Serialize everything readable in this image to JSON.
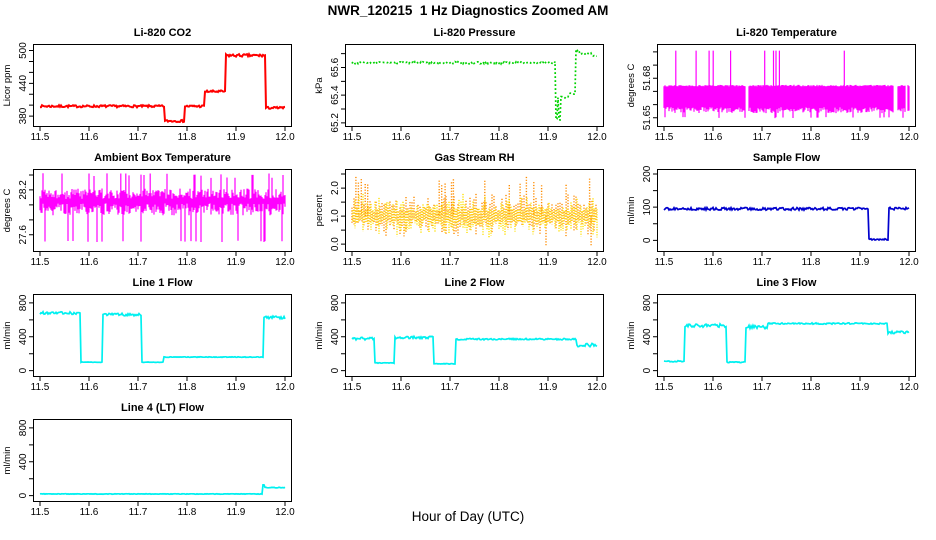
{
  "header": {
    "title": "NWR_120215  1 Hz Diagnostics Zoomed AM"
  },
  "footer": {
    "xlabel": "Hour of Day (UTC)"
  },
  "x_axis": {
    "ticks": [
      11.5,
      11.6,
      11.7,
      11.8,
      11.9,
      12.0
    ],
    "labels": [
      "11.5",
      "11.6",
      "11.7",
      "11.8",
      "11.9",
      "12.0"
    ],
    "xlim": [
      11.5,
      12.0
    ]
  },
  "chart_data": [
    {
      "id": "li820-co2",
      "type": "line",
      "render": "step",
      "line": "solid",
      "lw": 2,
      "title": "Li-820 CO2",
      "ylabel": "Licor ppm",
      "color": "#ff0000",
      "ylim": [
        360,
        512
      ],
      "yticks": [
        380,
        400,
        420,
        440,
        460,
        480,
        500
      ],
      "ytick_labels": [
        {
          "v": 380,
          "t": "380"
        },
        {
          "v": 440,
          "t": "440"
        },
        {
          "v": 500,
          "t": "500"
        }
      ],
      "segments": [
        {
          "x0": 11.5,
          "x1": 11.755,
          "y": 398,
          "n": 2
        },
        {
          "x0": 11.755,
          "x1": 11.795,
          "y": 371,
          "n": 2
        },
        {
          "x0": 11.795,
          "x1": 11.836,
          "y": 398,
          "n": 2
        },
        {
          "x0": 11.836,
          "x1": 11.879,
          "y": 425,
          "n": 2
        },
        {
          "x0": 11.879,
          "x1": 11.96,
          "y": 491,
          "n": 2.5
        },
        {
          "x0": 11.96,
          "x1": 12.0,
          "y": 395,
          "n": 2
        }
      ]
    },
    {
      "id": "li820-pressure",
      "type": "line",
      "render": "step",
      "line": "dotted",
      "lw": 1.7,
      "title": "Li-820 Pressure",
      "ylabel": "kPa",
      "color": "#00d200",
      "ylim": [
        65.17,
        65.77
      ],
      "yticks": [
        65.2,
        65.3,
        65.4,
        65.5,
        65.6,
        65.7
      ],
      "ytick_labels": [
        {
          "v": 65.2,
          "t": "65.2"
        },
        {
          "v": 65.4,
          "t": "65.4"
        },
        {
          "v": 65.6,
          "t": "65.6"
        }
      ],
      "segments": [
        {
          "x0": 11.5,
          "x1": 11.915,
          "y": 65.635,
          "n": 0.008
        },
        {
          "x0": 11.915,
          "x1": 11.9185,
          "y": 65.225,
          "n": 0.005
        },
        {
          "x0": 11.9185,
          "x1": 11.921,
          "y": 65.38,
          "n": 0.004
        },
        {
          "x0": 11.921,
          "x1": 11.9245,
          "y": 65.225,
          "n": 0.005
        },
        {
          "x0": 11.9245,
          "x1": 11.942,
          "y": 65.385,
          "n": 0.006
        },
        {
          "x0": 11.942,
          "x1": 11.957,
          "y": 65.41,
          "n": 0.006
        },
        {
          "x0": 11.957,
          "x1": 11.964,
          "y": 65.725,
          "n": 0.006
        },
        {
          "x0": 11.964,
          "x1": 11.988,
          "y": 65.7,
          "n": 0.005
        },
        {
          "x0": 11.988,
          "x1": 12.0,
          "y": 65.685,
          "n": 0.004
        }
      ]
    },
    {
      "id": "li820-temperature",
      "type": "line",
      "render": "band",
      "line": "solid",
      "lw": 1,
      "title": "Li-820 Temperature",
      "ylabel": "degrees C",
      "color": "#ff00ff",
      "ylim": [
        51.643,
        51.706
      ],
      "yticks": [
        51.65,
        51.66,
        51.67,
        51.68,
        51.69,
        51.7
      ],
      "ytick_labels": [
        {
          "v": 51.65,
          "t": "51.65"
        },
        {
          "v": 51.68,
          "t": "51.68"
        }
      ],
      "band": {
        "top": 51.675,
        "top_jitter": 0.0012,
        "bottom": 51.658,
        "bottom_jitter": 0.0045,
        "dip": 51.6507,
        "dip_prob": 0.07,
        "up": 51.675,
        "up_prob": 0,
        "spike_y": 51.701,
        "spikes": [
          11.524,
          11.5655,
          11.592,
          11.6005,
          11.636,
          11.7055,
          11.7235,
          11.7285,
          11.7355,
          11.868
        ],
        "gaps": [
          [
            11.667,
            11.6715
          ],
          [
            11.968,
            11.977
          ],
          [
            11.9935,
            11.996
          ]
        ]
      }
    },
    {
      "id": "ambient-box-temperature",
      "type": "line",
      "render": "band",
      "line": "solid",
      "lw": 1,
      "title": "Ambient Box Temperature",
      "ylabel": "degrees C",
      "color": "#ff00ff",
      "ylim": [
        27.37,
        28.48
      ],
      "yticks": [
        27.6,
        27.8,
        28.0,
        28.2,
        28.4
      ],
      "ytick_labels": [
        {
          "v": 27.6,
          "t": "27.6"
        },
        {
          "v": 28.2,
          "t": "28.2"
        }
      ],
      "band": {
        "top": 28.22,
        "top_jitter": 0.14,
        "bottom": 28.02,
        "bottom_jitter": 0.16,
        "dip": 27.52,
        "dip_prob": 0.06,
        "up": 28.36,
        "up_prob": 0.07,
        "spike_y": 28.42,
        "spikes": [
          11.545,
          11.665,
          11.675,
          11.725
        ],
        "gaps": []
      }
    },
    {
      "id": "gas-stream-rh",
      "type": "scatter",
      "render": "scatter",
      "line": "dotted",
      "lw": 1,
      "title": "Gas Stream RH",
      "ylabel": "percent",
      "color": "#ff8c00",
      "color2": "#ffe000",
      "ylim": [
        -0.28,
        2.68
      ],
      "yticks": [
        0.0,
        0.5,
        1.0,
        1.5,
        2.0,
        2.5
      ],
      "ytick_labels": [
        {
          "v": 0.0,
          "t": "0.0"
        },
        {
          "v": 1.0,
          "t": "1.0"
        },
        {
          "v": 2.0,
          "t": "2.0"
        }
      ],
      "scatter": {
        "center": 1.0,
        "up_min": 0.12,
        "up_var": 0.55,
        "down_min": 0.12,
        "down_var": 0.5,
        "spike_y": 2.4,
        "spikes": [
          11.508,
          11.513,
          11.519,
          11.527,
          11.532,
          11.678,
          11.683,
          11.69,
          11.703,
          11.707,
          11.771,
          11.821,
          11.843,
          11.856,
          11.871,
          11.887,
          11.937,
          11.985
        ],
        "dip_y": -0.05,
        "dips": [
          11.896,
          11.988
        ]
      }
    },
    {
      "id": "sample-flow",
      "type": "line",
      "render": "step",
      "line": "solid",
      "lw": 1.7,
      "title": "Sample Flow",
      "ylabel": "ml/min",
      "color": "#0000cd",
      "ylim": [
        -35,
        215
      ],
      "yticks": [
        0,
        50,
        100,
        150,
        200
      ],
      "ytick_labels": [
        {
          "v": 0,
          "t": "0"
        },
        {
          "v": 100,
          "t": "100"
        },
        {
          "v": 200,
          "t": "200"
        }
      ],
      "segments": [
        {
          "x0": 11.5,
          "x1": 11.918,
          "y": 95,
          "n": 4
        },
        {
          "x0": 11.918,
          "x1": 11.958,
          "y": 3,
          "n": 2
        },
        {
          "x0": 11.958,
          "x1": 12.0,
          "y": 96,
          "n": 4
        }
      ]
    },
    {
      "id": "line-1-flow",
      "type": "line",
      "render": "step",
      "line": "solid",
      "lw": 1.7,
      "title": "Line 1 Flow",
      "ylabel": "ml/min",
      "color": "#00f0f0",
      "ylim": [
        -75,
        905
      ],
      "yticks": [
        0,
        200,
        400,
        600,
        800
      ],
      "ytick_labels": [
        {
          "v": 0,
          "t": "0"
        },
        {
          "v": 400,
          "t": "400"
        },
        {
          "v": 800,
          "t": "800"
        }
      ],
      "segments": [
        {
          "x0": 11.5,
          "x1": 11.582,
          "y": 680,
          "n": 16
        },
        {
          "x0": 11.582,
          "x1": 11.627,
          "y": 100,
          "n": 3
        },
        {
          "x0": 11.627,
          "x1": 11.707,
          "y": 663,
          "n": 16
        },
        {
          "x0": 11.707,
          "x1": 11.752,
          "y": 100,
          "n": 3
        },
        {
          "x0": 11.752,
          "x1": 11.956,
          "y": 160,
          "n": 4
        },
        {
          "x0": 11.956,
          "x1": 12.0,
          "y": 628,
          "n": 18
        }
      ]
    },
    {
      "id": "line-2-flow",
      "type": "line",
      "render": "step",
      "line": "solid",
      "lw": 1.7,
      "title": "Line 2 Flow",
      "ylabel": "ml/min",
      "color": "#00f0f0",
      "ylim": [
        -75,
        905
      ],
      "yticks": [
        0,
        200,
        400,
        600,
        800
      ],
      "ytick_labels": [
        {
          "v": 0,
          "t": "0"
        },
        {
          "v": 400,
          "t": "400"
        },
        {
          "v": 800,
          "t": "800"
        }
      ],
      "segments": [
        {
          "x0": 11.5,
          "x1": 11.546,
          "y": 378,
          "n": 16
        },
        {
          "x0": 11.546,
          "x1": 11.586,
          "y": 90,
          "n": 4
        },
        {
          "x0": 11.586,
          "x1": 11.666,
          "y": 392,
          "n": 14
        },
        {
          "x0": 11.666,
          "x1": 11.711,
          "y": 80,
          "n": 4
        },
        {
          "x0": 11.711,
          "x1": 11.959,
          "y": 372,
          "n": 9
        },
        {
          "x0": 11.959,
          "x1": 12.0,
          "y": 302,
          "n": 20
        }
      ]
    },
    {
      "id": "line-3-flow",
      "type": "line",
      "render": "step",
      "line": "solid",
      "lw": 1.7,
      "title": "Line 3 Flow",
      "ylabel": "ml/min",
      "color": "#00f0f0",
      "ylim": [
        -75,
        905
      ],
      "yticks": [
        0,
        200,
        400,
        600,
        800
      ],
      "ytick_labels": [
        {
          "v": 0,
          "t": "0"
        },
        {
          "v": 400,
          "t": "400"
        },
        {
          "v": 800,
          "t": "800"
        }
      ],
      "segments": [
        {
          "x0": 11.5,
          "x1": 11.541,
          "y": 110,
          "n": 9
        },
        {
          "x0": 11.541,
          "x1": 11.627,
          "y": 532,
          "n": 20
        },
        {
          "x0": 11.627,
          "x1": 11.667,
          "y": 100,
          "n": 6
        },
        {
          "x0": 11.667,
          "x1": 11.711,
          "y": 515,
          "n": 22
        },
        {
          "x0": 11.711,
          "x1": 11.957,
          "y": 556,
          "n": 8
        },
        {
          "x0": 11.957,
          "x1": 12.0,
          "y": 452,
          "n": 16
        }
      ]
    },
    {
      "id": "line-4-lt-flow",
      "type": "line",
      "render": "step",
      "line": "solid",
      "lw": 1.7,
      "title": "Line 4 (LT) Flow",
      "ylabel": "ml/min",
      "color": "#00f0f0",
      "ylim": [
        -75,
        905
      ],
      "yticks": [
        0,
        200,
        400,
        600,
        800
      ],
      "ytick_labels": [
        {
          "v": 0,
          "t": "0"
        },
        {
          "v": 400,
          "t": "400"
        },
        {
          "v": 800,
          "t": "800"
        }
      ],
      "segments": [
        {
          "x0": 11.5,
          "x1": 11.954,
          "y": 20,
          "n": 3
        },
        {
          "x0": 11.954,
          "x1": 11.9575,
          "y": 128,
          "n": 4
        },
        {
          "x0": 11.9575,
          "x1": 12.0,
          "y": 95,
          "n": 4
        }
      ]
    }
  ]
}
